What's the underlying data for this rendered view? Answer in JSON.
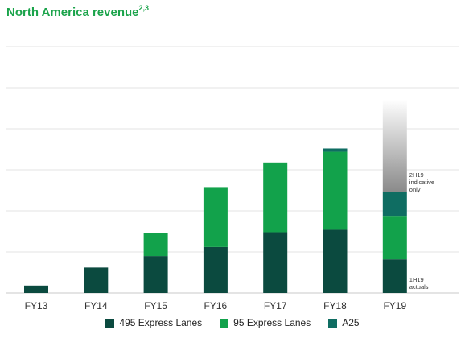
{
  "chart_data": {
    "type": "bar",
    "stacked": true,
    "title": "North America revenue",
    "title_superscript": "2,3",
    "categories": [
      "FY13",
      "FY14",
      "FY15",
      "FY16",
      "FY17",
      "FY18",
      "FY19"
    ],
    "series": [
      {
        "name": "495 Express Lanes",
        "color": "#0b4a3f",
        "values": [
          9,
          31,
          45,
          56,
          74,
          77,
          41
        ]
      },
      {
        "name": "95 Express Lanes",
        "color": "#12a24b",
        "values": [
          0,
          0,
          28,
          73,
          85,
          95,
          52
        ]
      },
      {
        "name": "A25",
        "color": "#0f6d62",
        "values": [
          0,
          0,
          0,
          0,
          0,
          4,
          30
        ]
      }
    ],
    "fy19_indicative_top": 236,
    "ylim": [
      0,
      300
    ],
    "grid": true,
    "legend_position": "bottom",
    "annotations": [
      {
        "text_lines": [
          "2H19",
          "indicative",
          "only"
        ]
      },
      {
        "text_lines": [
          "1H19",
          "actuals"
        ]
      }
    ]
  }
}
